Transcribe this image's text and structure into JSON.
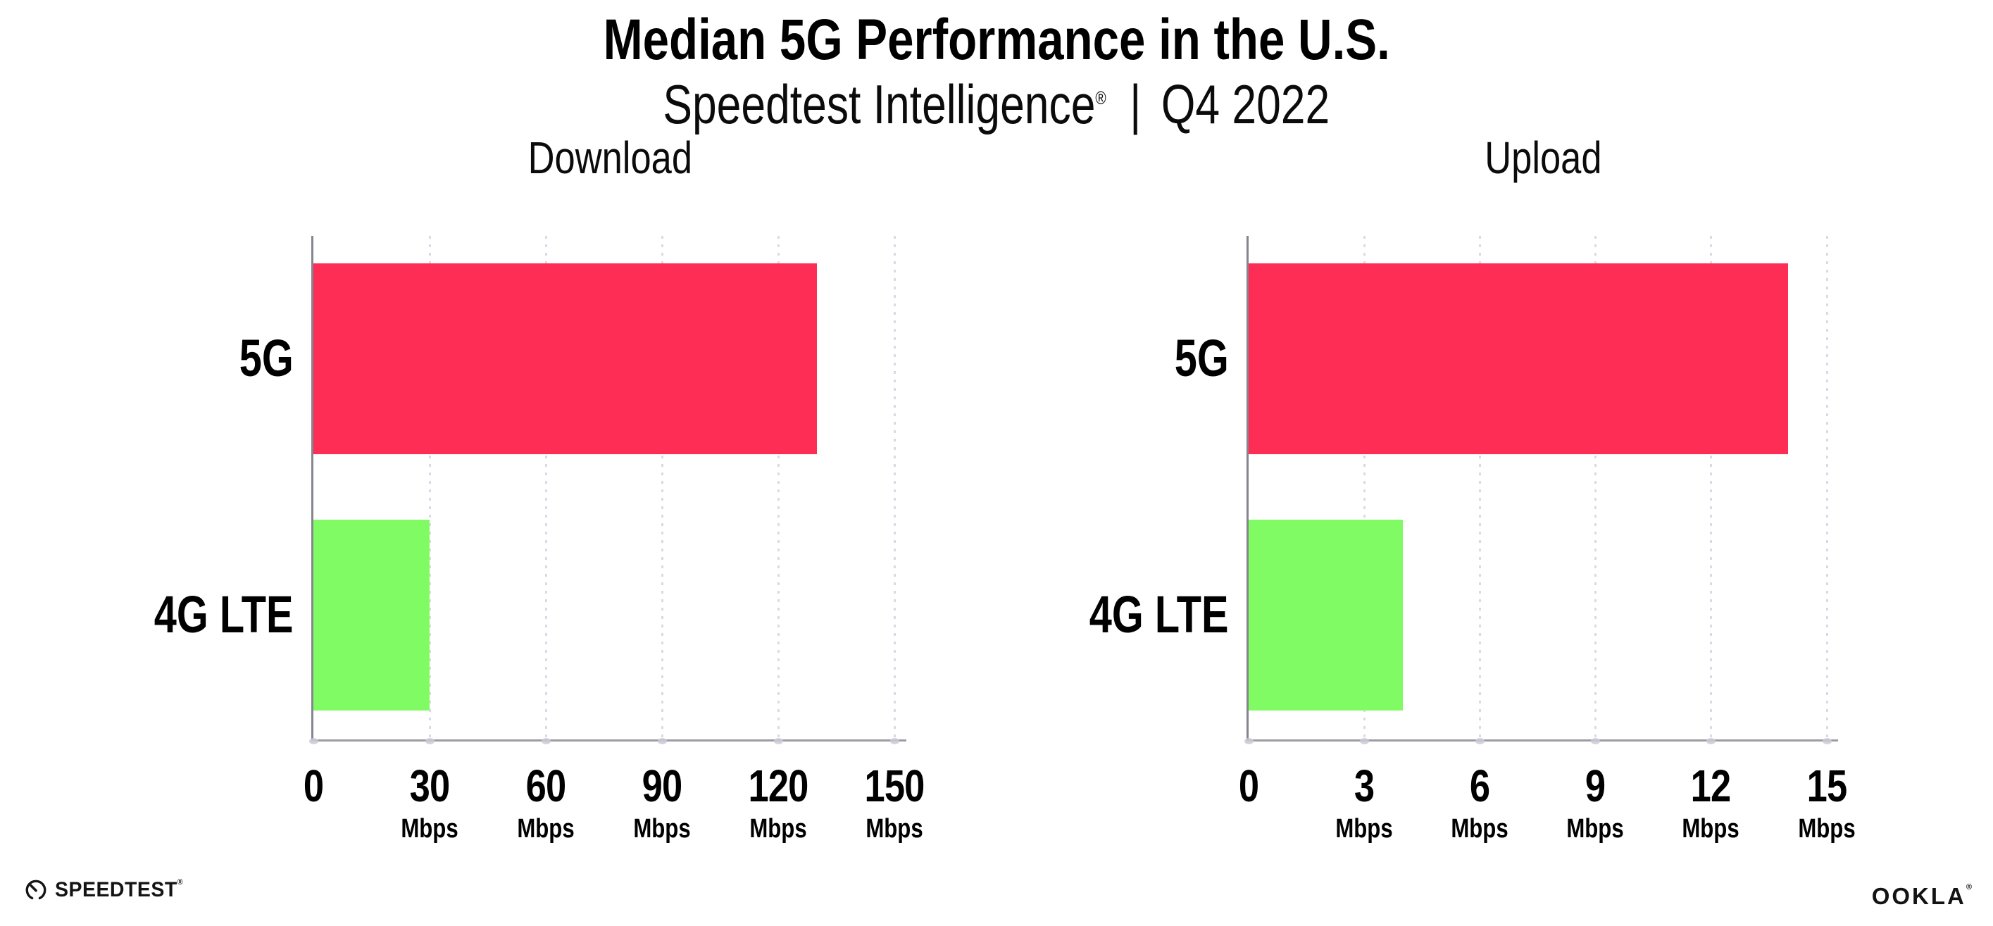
{
  "header": {
    "title": "Median 5G Performance in the U.S.",
    "subtitle_brand": "Speedtest Intelligence",
    "subtitle_reg_mark": "®",
    "subtitle_separator": "|",
    "subtitle_period": "Q4 2022"
  },
  "chart_data": [
    {
      "type": "bar",
      "orientation": "horizontal",
      "title": "Download",
      "categories": [
        "5G",
        "4G LTE"
      ],
      "values": [
        130,
        30
      ],
      "unit": "Mbps",
      "x_ticks": [
        0,
        30,
        60,
        90,
        120,
        150
      ],
      "xlim": [
        0,
        153
      ],
      "grid": "dotted-vertical",
      "legend": "none",
      "bar_colors": [
        "#FD2D55",
        "#80FB64"
      ]
    },
    {
      "type": "bar",
      "orientation": "horizontal",
      "title": "Upload",
      "categories": [
        "5G",
        "4G LTE"
      ],
      "values": [
        14,
        4
      ],
      "unit": "Mbps",
      "x_ticks": [
        0,
        3,
        6,
        9,
        12,
        15
      ],
      "xlim": [
        0,
        15.3
      ],
      "grid": "dotted-vertical",
      "legend": "none",
      "bar_colors": [
        "#FD2D55",
        "#80FB64"
      ]
    }
  ],
  "footer": {
    "speedtest_logo_text": "SPEEDTEST",
    "speedtest_mark": "®",
    "ookla_logo_text": "OOKLA",
    "ookla_mark": "®"
  },
  "colors": {
    "bar_5g": "#FD2D55",
    "bar_4g_lte": "#80FB64",
    "axis_line": "#9C9CA4",
    "gridline": "#DADAE6",
    "text": "#000000"
  }
}
